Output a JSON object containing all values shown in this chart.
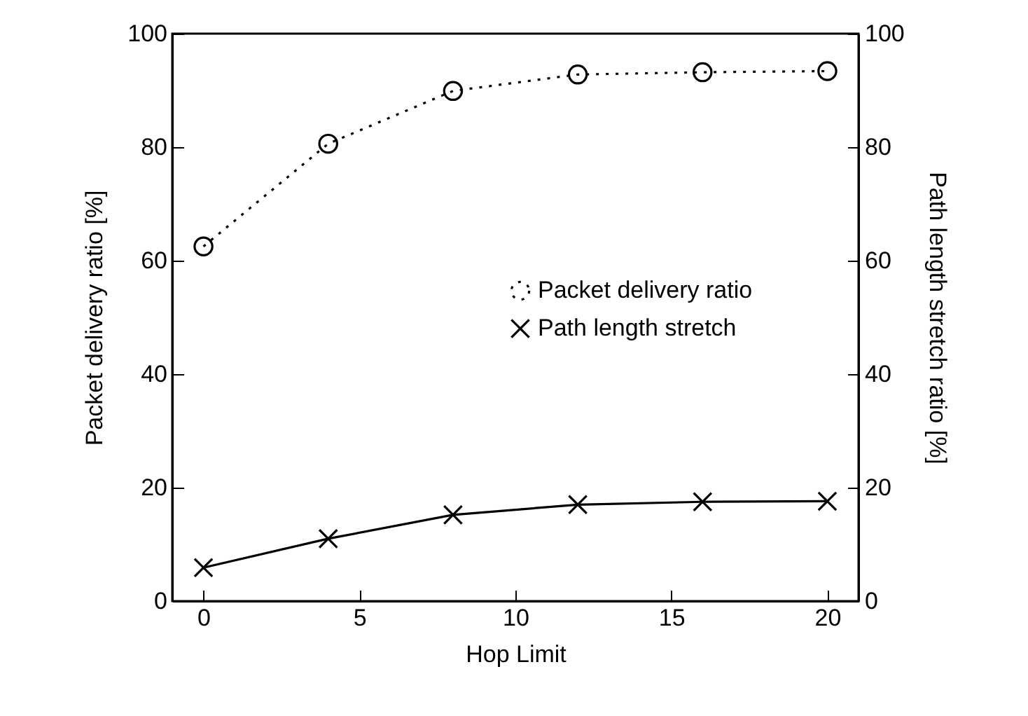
{
  "chart_data": {
    "type": "line",
    "xlabel": "Hop Limit",
    "ylabel": "Packet delivery ratio [%]",
    "y2label": "Path length stretch ratio [%]",
    "x": [
      0,
      4,
      8,
      12,
      16,
      20
    ],
    "series": [
      {
        "name": "Packet delivery ratio",
        "color": "#000000",
        "values": [
          62.5,
          80.6,
          89.9,
          92.8,
          93.2,
          93.4
        ],
        "marker": "circle",
        "line_style": "dotted"
      },
      {
        "name": "Path length stretch",
        "color": "#000000",
        "values": [
          5.9,
          11.0,
          15.2,
          17.0,
          17.5,
          17.6
        ],
        "marker": "cross",
        "line_style": "solid",
        "axis": "y2"
      }
    ],
    "xlim": [
      -1,
      21
    ],
    "xticks": [
      0,
      5,
      10,
      15,
      20
    ],
    "ylim": [
      0,
      100
    ],
    "yticks": [
      0,
      20,
      40,
      60,
      80,
      100
    ],
    "y2lim": [
      0,
      100
    ],
    "y2ticks": [
      0,
      20,
      40,
      60,
      80,
      100
    ],
    "legend": "right",
    "grid": false
  }
}
